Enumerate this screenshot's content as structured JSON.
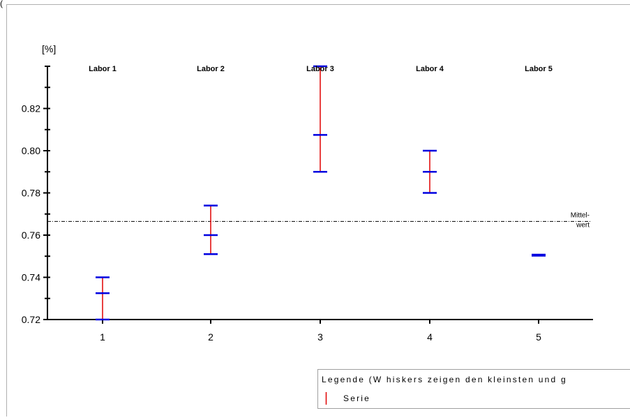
{
  "top_caption": "(",
  "chart_data": {
    "type": "error-bar",
    "ylabel": "[%]",
    "ylim": [
      0.72,
      0.84
    ],
    "yticks": [
      0.72,
      0.74,
      0.76,
      0.78,
      0.8,
      0.82
    ],
    "ytick_labels": [
      "0.72",
      "0.74",
      "0.76",
      "0.78",
      "0.80",
      "0.82"
    ],
    "categories": [
      "1",
      "2",
      "3",
      "4",
      "5"
    ],
    "lab_labels": [
      "Labor 1",
      "Labor 2",
      "Labor 3",
      "Labor 4",
      "Labor 5"
    ],
    "series": [
      {
        "name": "Serie",
        "mean": [
          0.7325,
          0.76,
          0.8075,
          0.79,
          0.7505
        ],
        "min": [
          0.72,
          0.751,
          0.79,
          0.78,
          0.7505
        ],
        "max": [
          0.74,
          0.774,
          0.84,
          0.8,
          0.7505
        ]
      }
    ],
    "reference_line": {
      "value": 0.7665,
      "label_line1": "Mittel-",
      "label_line2": "wert"
    },
    "legend": {
      "title": "Legende (W hiskers zeigen den kleinsten und g",
      "items": [
        {
          "label": "Serie"
        }
      ],
      "position": "bottom-right"
    },
    "grid": false,
    "colors": {
      "whisker": "#e00000",
      "marker": "#0000e0",
      "axis": "#000000",
      "frame": "#b0b0b0"
    }
  }
}
